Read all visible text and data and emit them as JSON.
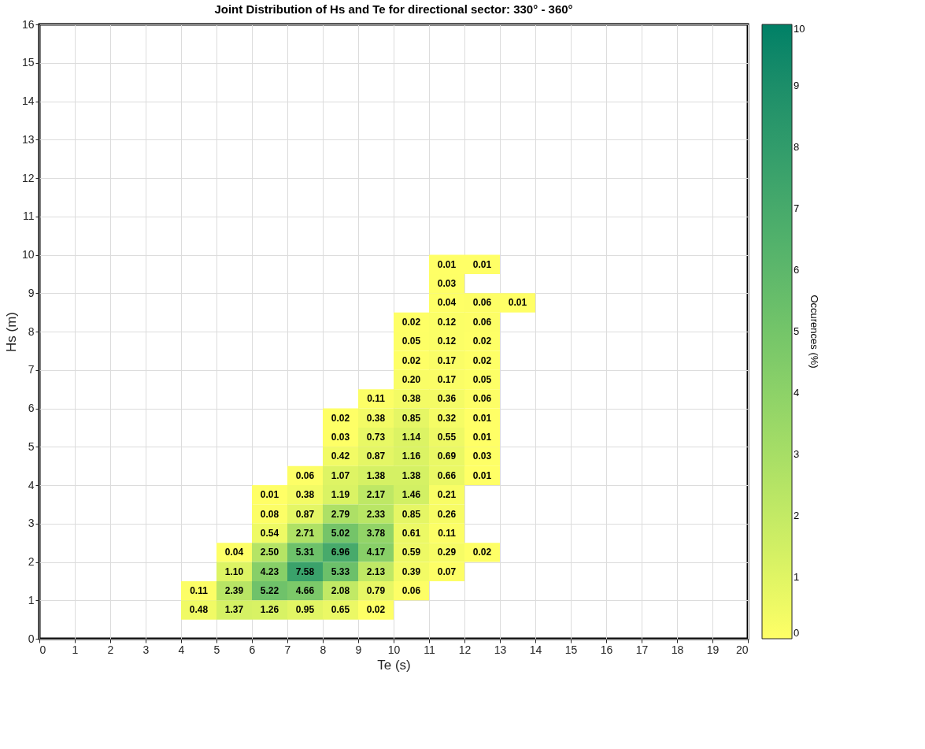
{
  "chart_data": {
    "type": "heatmap",
    "title": "Joint Distribution of Hs and Te for directional sector: 330° - 360°",
    "xlabel": "Te (s)",
    "ylabel": "Hs (m)",
    "clabel": "Occurences (%)",
    "x": [
      4.5,
      5.5,
      6.5,
      7.5,
      8.5,
      9.5,
      10.5,
      11.5,
      12.5,
      13.5
    ],
    "y": [
      9.75,
      9.25,
      8.75,
      8.25,
      7.75,
      7.25,
      6.75,
      6.25,
      5.75,
      5.25,
      4.75,
      4.25,
      3.75,
      3.25,
      2.75,
      2.25,
      1.75,
      1.25,
      0.75
    ],
    "cells": [
      [
        null,
        null,
        null,
        null,
        null,
        null,
        null,
        0.01,
        0.01,
        null
      ],
      [
        null,
        null,
        null,
        null,
        null,
        null,
        null,
        0.03,
        null,
        null
      ],
      [
        null,
        null,
        null,
        null,
        null,
        null,
        null,
        0.04,
        0.06,
        0.01
      ],
      [
        null,
        null,
        null,
        null,
        null,
        null,
        0.02,
        0.12,
        0.06,
        null
      ],
      [
        null,
        null,
        null,
        null,
        null,
        null,
        0.05,
        0.12,
        0.02,
        null
      ],
      [
        null,
        null,
        null,
        null,
        null,
        null,
        0.02,
        0.17,
        0.02,
        null
      ],
      [
        null,
        null,
        null,
        null,
        null,
        null,
        0.2,
        0.17,
        0.05,
        null
      ],
      [
        null,
        null,
        null,
        null,
        null,
        0.11,
        0.38,
        0.36,
        0.06,
        null
      ],
      [
        null,
        null,
        null,
        null,
        0.02,
        0.38,
        0.85,
        0.32,
        0.01,
        null
      ],
      [
        null,
        null,
        null,
        null,
        0.03,
        0.73,
        1.14,
        0.55,
        0.01,
        null
      ],
      [
        null,
        null,
        null,
        null,
        0.42,
        0.87,
        1.16,
        0.69,
        0.03,
        null
      ],
      [
        null,
        null,
        null,
        0.06,
        1.07,
        1.38,
        1.38,
        0.66,
        0.01,
        null
      ],
      [
        null,
        null,
        0.01,
        0.38,
        1.19,
        2.17,
        1.46,
        0.21,
        null,
        null
      ],
      [
        null,
        null,
        0.08,
        0.87,
        2.79,
        2.33,
        0.85,
        0.26,
        null,
        null
      ],
      [
        null,
        null,
        0.54,
        2.71,
        5.02,
        3.78,
        0.61,
        0.11,
        null,
        null
      ],
      [
        null,
        0.04,
        2.5,
        5.31,
        6.96,
        4.17,
        0.59,
        0.29,
        0.02,
        null
      ],
      [
        null,
        1.1,
        4.23,
        7.58,
        5.33,
        2.13,
        0.39,
        0.07,
        null,
        null
      ],
      [
        0.11,
        2.39,
        5.22,
        4.66,
        2.08,
        0.79,
        0.06,
        null,
        null,
        null
      ],
      [
        0.48,
        1.37,
        1.26,
        0.95,
        0.65,
        0.02,
        null,
        null,
        null,
        null
      ]
    ],
    "cell_labels": [
      [
        null,
        null,
        null,
        null,
        null,
        null,
        null,
        "0.01",
        "0.01",
        null
      ],
      [
        null,
        null,
        null,
        null,
        null,
        null,
        null,
        "0.03",
        null,
        null
      ],
      [
        null,
        null,
        null,
        null,
        null,
        null,
        null,
        "0.04",
        "0.06",
        "0.01"
      ],
      [
        null,
        null,
        null,
        null,
        null,
        null,
        "0.02",
        "0.12",
        "0.06",
        null
      ],
      [
        null,
        null,
        null,
        null,
        null,
        null,
        "0.05",
        "0.12",
        "0.02",
        null
      ],
      [
        null,
        null,
        null,
        null,
        null,
        null,
        "0.02",
        "0.17",
        "0.02",
        null
      ],
      [
        null,
        null,
        null,
        null,
        null,
        null,
        "0.20",
        "0.17",
        "0.05",
        null
      ],
      [
        null,
        null,
        null,
        null,
        null,
        "0.11",
        "0.38",
        "0.36",
        "0.06",
        null
      ],
      [
        null,
        null,
        null,
        null,
        "0.02",
        "0.38",
        "0.85",
        "0.32",
        "0.01",
        null
      ],
      [
        null,
        null,
        null,
        null,
        "0.03",
        "0.73",
        "1.14",
        "0.55",
        "0.01",
        null
      ],
      [
        null,
        null,
        null,
        null,
        "0.42",
        "0.87",
        "1.16",
        "0.69",
        "0.03",
        null
      ],
      [
        null,
        null,
        null,
        "0.06",
        "1.07",
        "1.38",
        "1.38",
        "0.66",
        "0.01",
        null
      ],
      [
        null,
        null,
        "0.01",
        "0.38",
        "1.19",
        "2.17",
        "1.46",
        "0.21",
        null,
        null
      ],
      [
        null,
        null,
        "0.08",
        "0.87",
        "2.79",
        "2.33",
        "0.85",
        "0.26",
        null,
        null
      ],
      [
        null,
        null,
        "0.54",
        "2.71",
        "5.02",
        "3.78",
        "0.61",
        "0.11",
        null,
        null
      ],
      [
        null,
        "0.04",
        "2.50",
        "5.31",
        "6.96",
        "4.17",
        "0.59",
        "0.29",
        "0.02",
        null
      ],
      [
        null,
        "1.10",
        "4.23",
        "7.58",
        "5.33",
        "2.13",
        "0.39",
        "0.07",
        null,
        null
      ],
      [
        "0.11",
        "2.39",
        "5.22",
        "4.66",
        "2.08",
        "0.79",
        "0.06",
        null,
        null,
        null
      ],
      [
        "0.48",
        "1.37",
        "1.26",
        "0.95",
        "0.65",
        "0.02",
        null,
        null,
        null,
        null
      ]
    ],
    "colors": [
      "#ffff66",
      "#008066"
    ],
    "clim": [
      0,
      10
    ],
    "cticks": [
      0,
      1,
      2,
      3,
      4,
      5,
      6,
      7,
      8,
      9,
      10
    ],
    "xlim": [
      0,
      20
    ],
    "xticks": [
      0,
      1,
      2,
      3,
      4,
      5,
      6,
      7,
      8,
      9,
      10,
      11,
      12,
      13,
      14,
      15,
      16,
      17,
      18,
      19,
      20
    ],
    "ylim": [
      0,
      16
    ],
    "yticks": [
      0,
      1,
      2,
      3,
      4,
      5,
      6,
      7,
      8,
      9,
      10,
      11,
      12,
      13,
      14,
      15,
      16
    ],
    "grid": true,
    "data_labels": true
  }
}
